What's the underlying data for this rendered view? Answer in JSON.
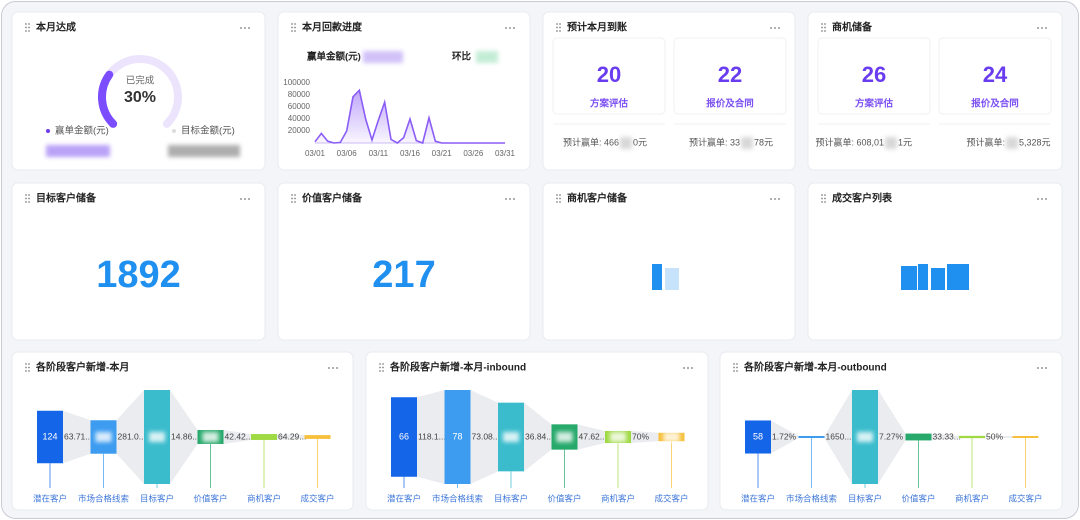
{
  "achievement": {
    "title": "本月达成",
    "caption": "已完成",
    "value": 30,
    "value_label": "30%",
    "legend": [
      "赢单金额(元)",
      "目标金额(元)"
    ]
  },
  "payment": {
    "title": "本月回款进度",
    "amount_label": "赢单金额(元)",
    "mom_label": "环比",
    "chart": {
      "type": "line",
      "color": "#8b5cf6",
      "categories": [
        "03/01",
        null,
        null,
        null,
        null,
        "03/06",
        null,
        null,
        null,
        null,
        "03/11",
        null,
        null,
        null,
        null,
        "03/16",
        null,
        null,
        null,
        null,
        "03/21",
        null,
        null,
        null,
        null,
        "03/26",
        null,
        null,
        null,
        null,
        "03/31"
      ],
      "values": [
        2000,
        16000,
        3000,
        0,
        1000,
        20000,
        77000,
        88000,
        40000,
        5000,
        38000,
        68000,
        6000,
        0,
        9000,
        40000,
        4000,
        0,
        42000,
        3000,
        0,
        0,
        0,
        0,
        0,
        0,
        0,
        0,
        0,
        0,
        0
      ],
      "ylim": [
        0,
        100000
      ],
      "yticks": [
        20000,
        40000,
        60000,
        80000,
        100000
      ]
    }
  },
  "expected": {
    "title": "预计本月到账",
    "items": [
      {
        "value": 20,
        "name": "方案评估",
        "footer_prefix": "预计赢单: 466",
        "footer_suffix": "0元"
      },
      {
        "value": 22,
        "name": "报价及合同",
        "footer_prefix": "预计赢单: 33",
        "footer_suffix": "78元"
      }
    ]
  },
  "pipeline": {
    "title": "商机储备",
    "items": [
      {
        "value": 26,
        "name": "方案评估",
        "footer_prefix": "预计赢单: 608,01",
        "footer_suffix": "1元"
      },
      {
        "value": 24,
        "name": "报价及合同",
        "footer_prefix": "预计赢单: ",
        "footer_suffix": "5,328元"
      }
    ]
  },
  "stock": [
    {
      "title": "目标客户储备",
      "value": 1892
    },
    {
      "title": "价值客户储备",
      "value": 217
    },
    {
      "title": "商机客户储备"
    },
    {
      "title": "成交客户列表"
    }
  ],
  "funnels": [
    {
      "title": "各阶段客户新增-本月",
      "chart": {
        "type": "funnel",
        "categories": [
          "潜在客户",
          "市场合格线索",
          "目标客户",
          "价值客户",
          "商机客户",
          "成交客户"
        ],
        "values": [
          124,
          79,
          222,
          33,
          14,
          9
        ],
        "value_labels": [
          "124",
          null,
          null,
          null,
          null,
          null
        ],
        "rates": [
          "63.71...",
          "281.0...",
          "14.86...",
          "42.42...",
          "64.29..."
        ],
        "colors": [
          "#1565e8",
          "#3d9cf0",
          "#3bbccc",
          "#27a96b",
          "#9fd944",
          "#f7c03c"
        ]
      }
    },
    {
      "title": "各阶段客户新增-本月-inbound",
      "chart": {
        "type": "funnel",
        "categories": [
          "潜在客户",
          "市场合格线索",
          "目标客户",
          "价值客户",
          "商机客户",
          "成交客户"
        ],
        "values": [
          66,
          78,
          57,
          21,
          10,
          7
        ],
        "value_labels": [
          "66",
          "78",
          null,
          null,
          null,
          null
        ],
        "rates": [
          "118.1...",
          "73.08...",
          "36.84...",
          "47.62...",
          "70%"
        ],
        "colors": [
          "#1565e8",
          "#3d9cf0",
          "#3bbccc",
          "#27a96b",
          "#9fd944",
          "#f7c03c"
        ]
      }
    },
    {
      "title": "各阶段客户新增-本月-outbound",
      "chart": {
        "type": "funnel",
        "categories": [
          "潜在客户",
          "市场合格线索",
          "目标客户",
          "价值客户",
          "商机客户",
          "成交客户"
        ],
        "values": [
          58,
          1,
          165,
          12,
          4,
          2
        ],
        "value_labels": [
          "58",
          null,
          null,
          null,
          null,
          null
        ],
        "rates": [
          "1.72%",
          "1650...",
          "7.27%",
          "33.33...",
          "50%"
        ],
        "colors": [
          "#1565e8",
          "#3d9cf0",
          "#3bbccc",
          "#27a96b",
          "#9fd944",
          "#f7c03c"
        ]
      }
    }
  ]
}
